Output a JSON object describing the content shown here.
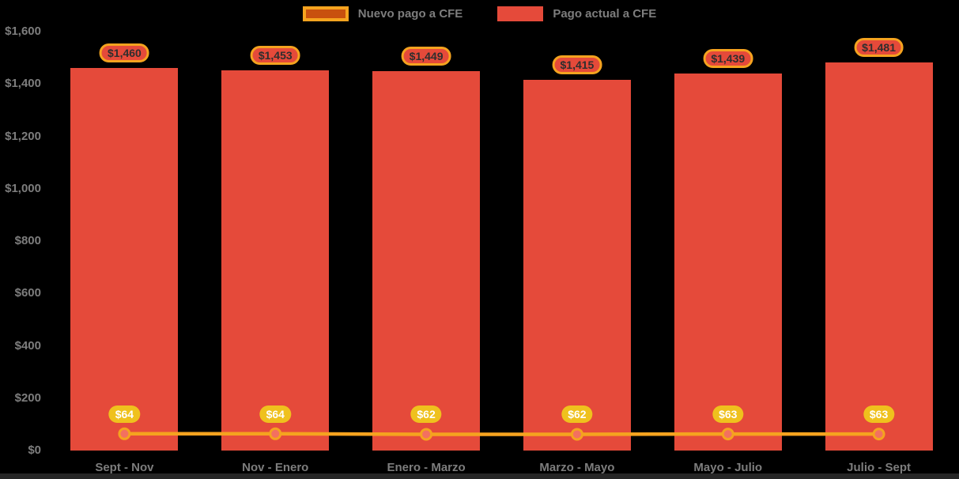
{
  "legend": {
    "items": [
      {
        "label": "Nuevo pago a CFE",
        "type": "line",
        "fill": "#c8500e",
        "border": "#f5a31f"
      },
      {
        "label": "Pago actual a CFE",
        "type": "bar",
        "fill": "#e54a3a"
      }
    ]
  },
  "colors": {
    "background": "#000000",
    "bar": "#e54a3a",
    "line": "#f5a31f",
    "marker_fill": "#f37060",
    "marker_stroke": "#f5a31f",
    "bar_pill_bg": "#e54a3a",
    "bar_pill_border": "#f5a31f",
    "bar_pill_text": "#2e2e2e",
    "line_pill_bg": "#efc11d",
    "line_pill_text": "#ffffff",
    "axis_text": "#7d7d7d",
    "bottom_strip": "#262626"
  },
  "chart_data": {
    "type": "bar+line",
    "title": "",
    "xlabel": "",
    "ylabel": "",
    "legend_position": "top",
    "grid": false,
    "ylim": [
      0,
      1600
    ],
    "categories": [
      "Sept - Nov",
      "Nov - Enero",
      "Enero - Marzo",
      "Marzo - Mayo",
      "Mayo - Julio",
      "Julio - Sept"
    ],
    "y_ticks": [
      {
        "value": 0,
        "label": "$0"
      },
      {
        "value": 200,
        "label": "$200"
      },
      {
        "value": 400,
        "label": "$400"
      },
      {
        "value": 600,
        "label": "$600"
      },
      {
        "value": 800,
        "label": "$800"
      },
      {
        "value": 1000,
        "label": "$1,000"
      },
      {
        "value": 1200,
        "label": "$1,200"
      },
      {
        "value": 1400,
        "label": "$1,400"
      },
      {
        "value": 1600,
        "label": "$1,600"
      }
    ],
    "series": [
      {
        "name": "Pago actual a CFE",
        "type": "bar",
        "color": "#e54a3a",
        "values": [
          1460,
          1453,
          1449,
          1415,
          1439,
          1481
        ],
        "labels": [
          "$1,460",
          "$1,453",
          "$1,449",
          "$1,415",
          "$1,439",
          "$1,481"
        ]
      },
      {
        "name": "Nuevo pago a CFE",
        "type": "line",
        "color": "#f5a31f",
        "values": [
          64,
          64,
          62,
          62,
          63,
          63
        ],
        "labels": [
          "$64",
          "$64",
          "$62",
          "$62",
          "$63",
          "$63"
        ]
      }
    ]
  }
}
